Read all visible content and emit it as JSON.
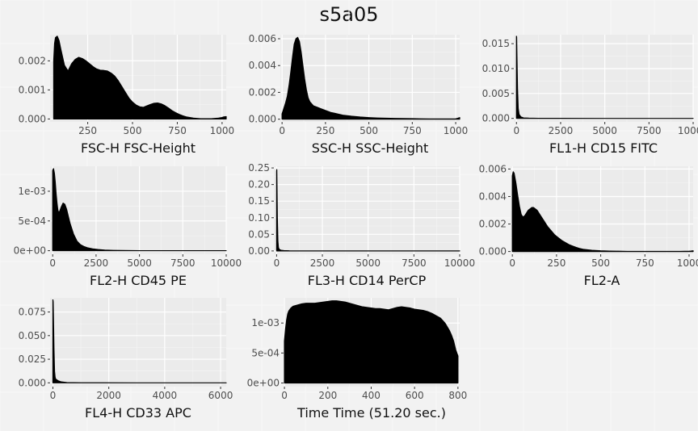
{
  "title": "s5a05",
  "chart_data": [
    {
      "type": "area",
      "xlabel": "FSC-H FSC-Height",
      "xlim": [
        40,
        1023
      ],
      "ylim": [
        -0.0001,
        0.0029
      ],
      "x_ticks": [
        250,
        500,
        750,
        1000
      ],
      "x_tick_labels": [
        "250",
        "500",
        "750",
        "1000"
      ],
      "y_ticks": [
        0,
        0.001,
        0.002
      ],
      "y_tick_labels": [
        "0.000",
        "0.001",
        "0.002"
      ],
      "x": [
        60,
        65,
        70,
        80,
        90,
        100,
        120,
        140,
        160,
        180,
        200,
        220,
        240,
        260,
        280,
        300,
        320,
        340,
        360,
        380,
        400,
        420,
        440,
        460,
        480,
        500,
        520,
        540,
        560,
        580,
        600,
        620,
        640,
        660,
        680,
        700,
        720,
        740,
        760,
        780,
        800,
        820,
        840,
        860,
        880,
        900,
        920,
        940,
        960,
        980,
        1000,
        1010,
        1023
      ],
      "y": [
        0.002,
        0.0026,
        0.0028,
        0.00285,
        0.0027,
        0.0024,
        0.00185,
        0.00165,
        0.0019,
        0.00205,
        0.00212,
        0.00208,
        0.002,
        0.0019,
        0.0018,
        0.00172,
        0.00168,
        0.00167,
        0.00165,
        0.00158,
        0.00148,
        0.00132,
        0.00112,
        0.00092,
        0.00072,
        0.00058,
        0.00048,
        0.00042,
        0.0004,
        0.00045,
        0.0005,
        0.00054,
        0.00055,
        0.00052,
        0.00046,
        0.00038,
        0.00029,
        0.00022,
        0.00016,
        0.00011,
        7e-05,
        5e-05,
        3e-05,
        2e-05,
        1e-05,
        1e-05,
        1e-05,
        1e-05,
        2e-05,
        3e-05,
        5e-05,
        7e-05,
        8e-05
      ]
    },
    {
      "type": "area",
      "xlabel": "SSC-H SSC-Height",
      "xlim": [
        -10,
        1023
      ],
      "ylim": [
        -0.0002,
        0.0063
      ],
      "x_ticks": [
        0,
        250,
        500,
        750,
        1000
      ],
      "x_tick_labels": [
        "0",
        "250",
        "500",
        "750",
        "1000"
      ],
      "y_ticks": [
        0,
        0.002,
        0.004,
        0.006
      ],
      "y_tick_labels": [
        "0.000",
        "0.002",
        "0.004",
        "0.006"
      ],
      "x": [
        0,
        10,
        20,
        30,
        40,
        50,
        60,
        70,
        80,
        90,
        100,
        110,
        120,
        130,
        140,
        150,
        160,
        180,
        200,
        220,
        240,
        260,
        280,
        300,
        350,
        400,
        450,
        500,
        550,
        600,
        650,
        700,
        750,
        800,
        850,
        900,
        950,
        1000,
        1010,
        1023
      ],
      "y": [
        0.0004,
        0.0008,
        0.0012,
        0.0017,
        0.0025,
        0.0035,
        0.0046,
        0.0056,
        0.006,
        0.0061,
        0.0058,
        0.005,
        0.004,
        0.003,
        0.0022,
        0.0016,
        0.0013,
        0.001,
        0.0009,
        0.0008,
        0.0007,
        0.0006,
        0.0005,
        0.00045,
        0.0003,
        0.00022,
        0.00016,
        0.00012,
        9e-05,
        7e-05,
        6e-05,
        5e-05,
        4e-05,
        3e-05,
        2e-05,
        2e-05,
        2e-05,
        3e-05,
        6e-05,
        0.00012
      ]
    },
    {
      "type": "area",
      "xlabel": "FL1-H CD15 FITC",
      "xlim": [
        -150,
        10000
      ],
      "ylim": [
        -0.0007,
        0.0168
      ],
      "x_ticks": [
        0,
        2500,
        5000,
        7500,
        10000
      ],
      "x_tick_labels": [
        "0",
        "2500",
        "5000",
        "7500",
        "10000"
      ],
      "y_ticks": [
        0,
        0.005,
        0.01,
        0.015
      ],
      "y_tick_labels": [
        "0.000",
        "0.005",
        "0.010",
        "0.015"
      ],
      "x": [
        0,
        10,
        30,
        60,
        100,
        150,
        250,
        400,
        700,
        1200,
        2500,
        5000,
        7500,
        10000
      ],
      "y": [
        0.0165,
        0.0163,
        0.012,
        0.006,
        0.002,
        0.0008,
        0.0003,
        0.0001,
        5e-05,
        2e-05,
        1e-05,
        0,
        0,
        0
      ]
    },
    {
      "type": "area",
      "xlabel": "FL2-H CD45 PE",
      "xlim": [
        -150,
        10000
      ],
      "ylim": [
        -6e-05,
        0.00142
      ],
      "x_ticks": [
        0,
        2500,
        5000,
        7500,
        10000
      ],
      "x_tick_labels": [
        "0",
        "2500",
        "5000",
        "7500",
        "10000"
      ],
      "y_ticks": [
        0,
        0.0005,
        0.001
      ],
      "y_tick_labels": [
        "0e+00",
        "5e-04",
        "1e-03"
      ],
      "x": [
        0,
        50,
        100,
        150,
        200,
        250,
        300,
        350,
        400,
        500,
        600,
        700,
        800,
        900,
        1000,
        1200,
        1400,
        1600,
        1800,
        2000,
        2300,
        2600,
        3000,
        3500,
        4000,
        5000,
        6000,
        7500,
        10000
      ],
      "y": [
        0.00135,
        0.00138,
        0.0013,
        0.00115,
        0.00095,
        0.0008,
        0.00068,
        0.00064,
        0.00066,
        0.00074,
        0.0008,
        0.00078,
        0.0007,
        0.00058,
        0.00046,
        0.00028,
        0.00016,
        0.0001,
        7e-05,
        5e-05,
        3e-05,
        2e-05,
        1e-05,
        5e-06,
        3e-06,
        0,
        0,
        0,
        0
      ]
    },
    {
      "type": "area",
      "xlabel": "FL3-H CD14 PerCP",
      "xlim": [
        -150,
        10000
      ],
      "ylim": [
        -0.01,
        0.255
      ],
      "x_ticks": [
        0,
        2500,
        5000,
        7500,
        10000
      ],
      "x_tick_labels": [
        "0",
        "2500",
        "5000",
        "7500",
        "10000"
      ],
      "y_ticks": [
        0,
        0.05,
        0.1,
        0.15,
        0.2,
        0.25
      ],
      "y_tick_labels": [
        "0.00",
        "0.05",
        "0.10",
        "0.15",
        "0.20",
        "0.25"
      ],
      "x": [
        0,
        10,
        20,
        40,
        70,
        100,
        150,
        250,
        400,
        700,
        1500,
        5000,
        10000
      ],
      "y": [
        0.24,
        0.245,
        0.2,
        0.1,
        0.03,
        0.01,
        0.004,
        0.002,
        0.001,
        0.0005,
        0.0002,
        0,
        0
      ]
    },
    {
      "type": "area",
      "xlabel": "FL2-A",
      "xlim": [
        -10,
        1023
      ],
      "ylim": [
        -0.0002,
        0.0062
      ],
      "x_ticks": [
        0,
        250,
        500,
        750,
        1000
      ],
      "x_tick_labels": [
        "0",
        "250",
        "500",
        "750",
        "1000"
      ],
      "y_ticks": [
        0,
        0.002,
        0.004,
        0.006
      ],
      "y_tick_labels": [
        "0.000",
        "0.002",
        "0.004",
        "0.006"
      ],
      "x": [
        0,
        5,
        10,
        20,
        30,
        40,
        50,
        60,
        70,
        80,
        90,
        100,
        110,
        120,
        130,
        140,
        150,
        160,
        180,
        200,
        220,
        240,
        260,
        280,
        300,
        320,
        340,
        360,
        380,
        400,
        450,
        500,
        550,
        600,
        650,
        700,
        750,
        800,
        850,
        900,
        950,
        1000,
        1010,
        1023
      ],
      "y": [
        0.0055,
        0.0058,
        0.0057,
        0.005,
        0.0041,
        0.0033,
        0.0027,
        0.0025,
        0.0026,
        0.0028,
        0.003,
        0.0031,
        0.0032,
        0.0032,
        0.0031,
        0.003,
        0.0028,
        0.0026,
        0.0022,
        0.0018,
        0.0015,
        0.0012,
        0.001,
        0.0008,
        0.00065,
        0.0005,
        0.0004,
        0.0003,
        0.00022,
        0.00016,
        9e-05,
        5e-05,
        3e-05,
        2e-05,
        1e-05,
        1e-05,
        1e-05,
        1e-05,
        1e-05,
        1e-05,
        1e-05,
        2e-05,
        3e-05,
        5e-05
      ]
    },
    {
      "type": "area",
      "xlabel": "FL4-H CD33 APC",
      "xlim": [
        -100,
        6200
      ],
      "ylim": [
        -0.004,
        0.09
      ],
      "x_ticks": [
        0,
        2000,
        4000,
        6000
      ],
      "x_tick_labels": [
        "0",
        "2000",
        "4000",
        "6000"
      ],
      "y_ticks": [
        0,
        0.025,
        0.05,
        0.075
      ],
      "y_tick_labels": [
        "0.000",
        "0.025",
        "0.050",
        "0.075"
      ],
      "x": [
        0,
        10,
        20,
        40,
        60,
        80,
        100,
        150,
        200,
        300,
        500,
        1000,
        3000,
        6200
      ],
      "y": [
        0.088,
        0.086,
        0.07,
        0.035,
        0.012,
        0.006,
        0.004,
        0.003,
        0.002,
        0.001,
        0.0003,
        0.0001,
        0,
        0
      ]
    },
    {
      "type": "area",
      "xlabel": "Time Time (51.20 sec.)",
      "xlim": [
        -4,
        808
      ],
      "ylim": [
        -6e-05,
        0.00142
      ],
      "x_ticks": [
        0,
        200,
        400,
        600,
        800
      ],
      "x_tick_labels": [
        "0",
        "200",
        "400",
        "600",
        "800"
      ],
      "y_ticks": [
        0,
        0.0005,
        0.001
      ],
      "y_tick_labels": [
        "0e+00",
        "5e-04",
        "1e-03"
      ],
      "x": [
        0,
        5,
        10,
        15,
        20,
        30,
        40,
        60,
        80,
        100,
        120,
        140,
        160,
        180,
        200,
        220,
        240,
        260,
        280,
        300,
        320,
        340,
        360,
        380,
        400,
        420,
        440,
        460,
        480,
        500,
        520,
        540,
        560,
        580,
        600,
        620,
        640,
        660,
        680,
        700,
        720,
        740,
        760,
        770,
        780,
        790,
        800
      ],
      "y": [
        0.0007,
        0.0009,
        0.00105,
        0.00115,
        0.0012,
        0.00125,
        0.00128,
        0.0013,
        0.00132,
        0.00133,
        0.00133,
        0.00133,
        0.00134,
        0.00135,
        0.00136,
        0.00137,
        0.00137,
        0.00136,
        0.00135,
        0.00133,
        0.00131,
        0.00129,
        0.00127,
        0.00126,
        0.00125,
        0.00124,
        0.00124,
        0.00123,
        0.00122,
        0.00124,
        0.00126,
        0.00127,
        0.00126,
        0.00125,
        0.00123,
        0.00122,
        0.00121,
        0.00119,
        0.00116,
        0.00112,
        0.00108,
        0.001,
        0.00088,
        0.0008,
        0.0007,
        0.00055,
        0.00045
      ]
    }
  ]
}
